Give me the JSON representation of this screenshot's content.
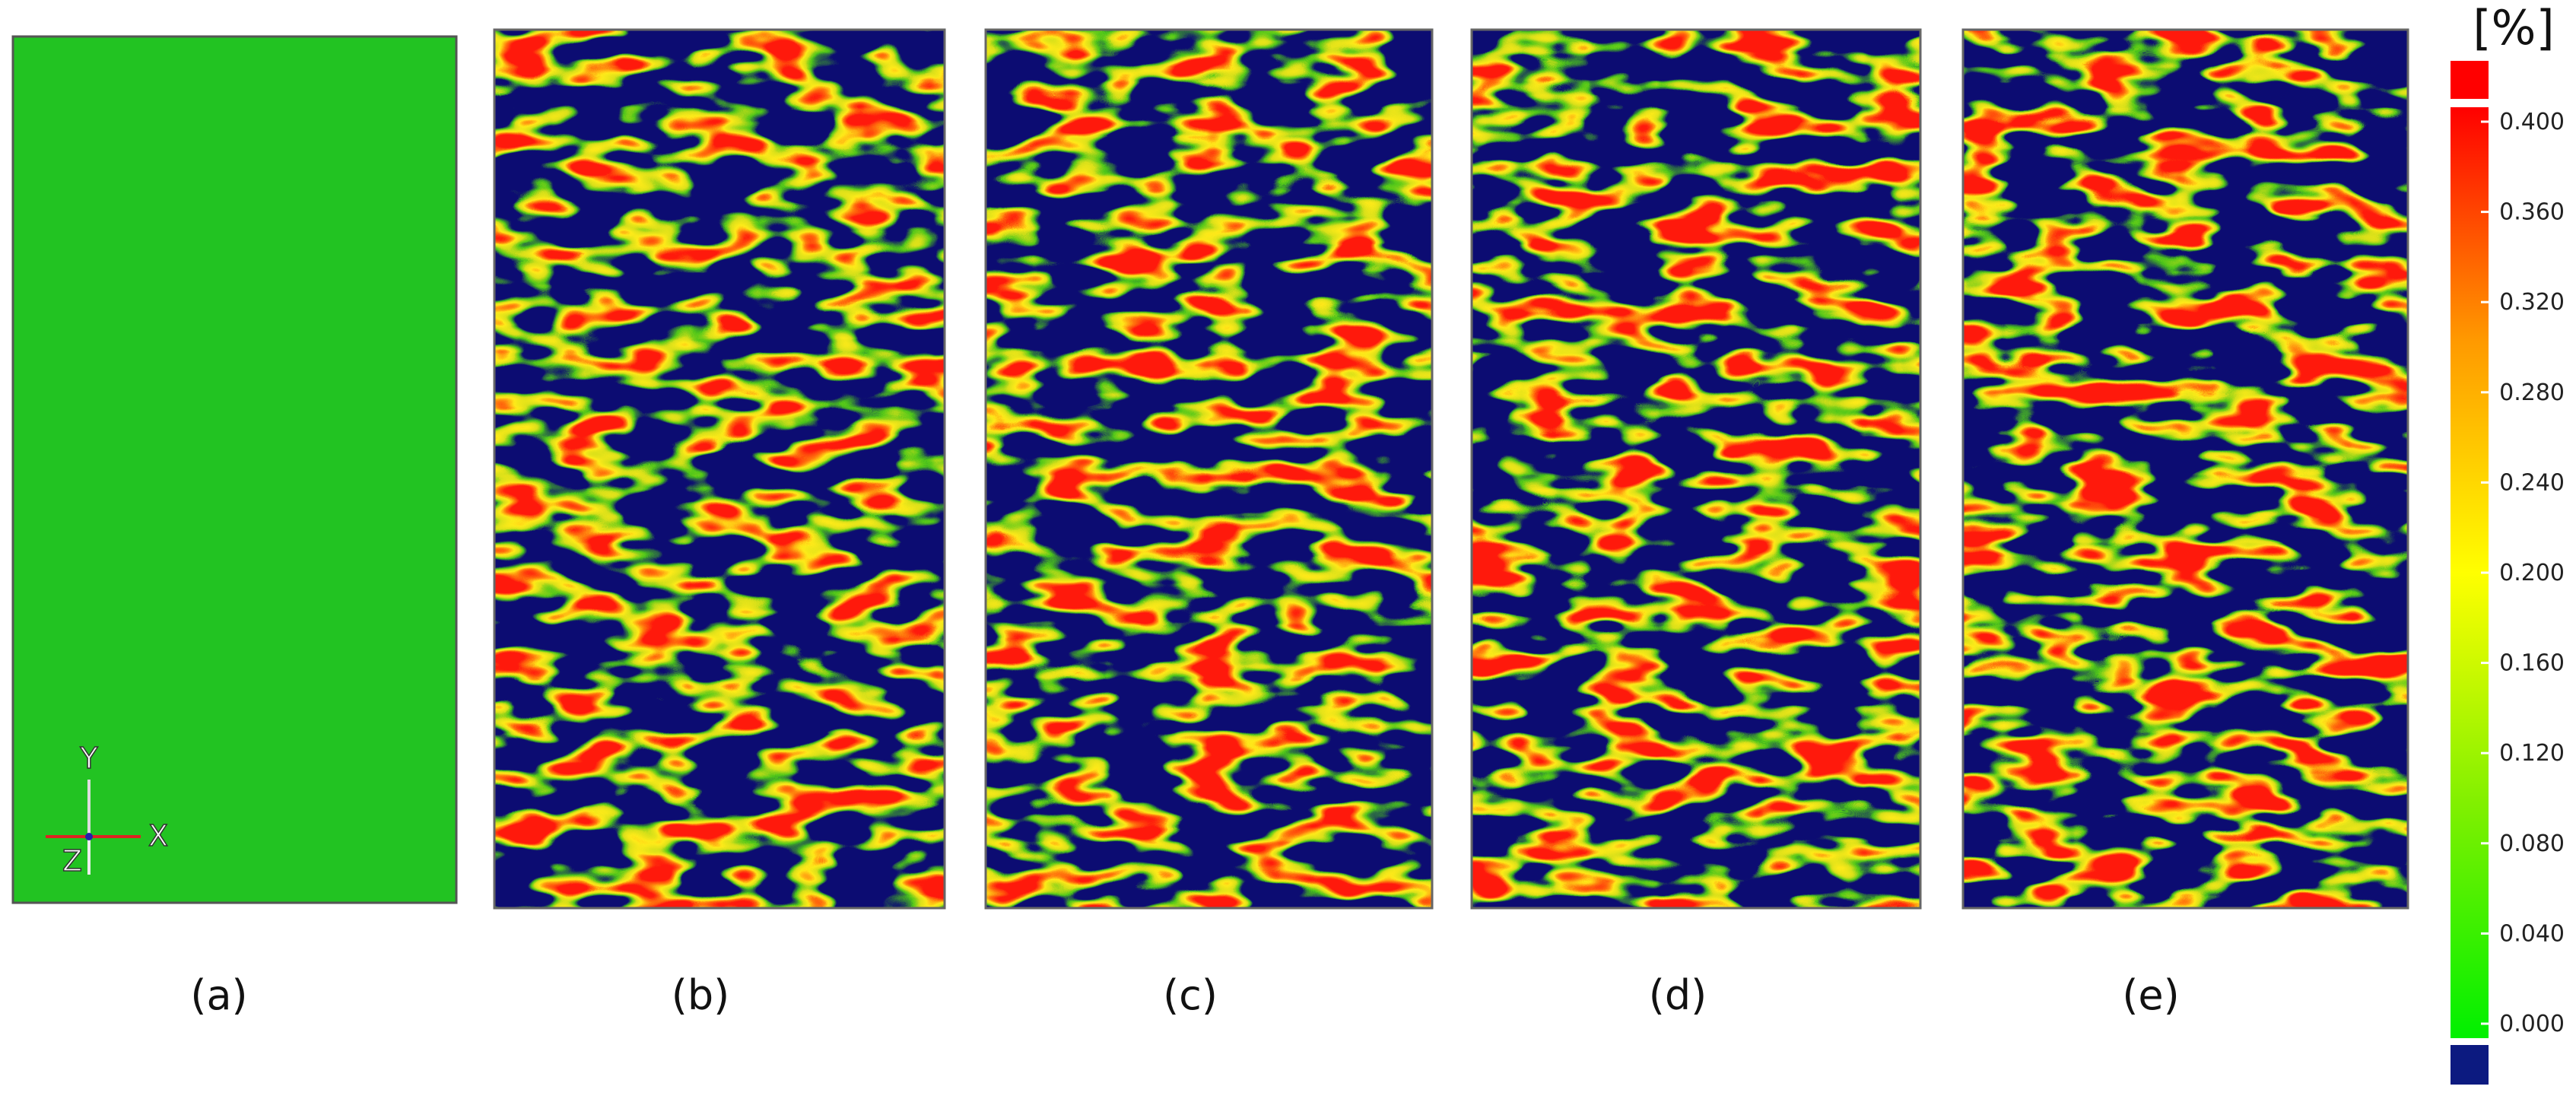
{
  "panels": [
    {
      "label": "(a)"
    },
    {
      "label": "(b)"
    },
    {
      "label": "(c)"
    },
    {
      "label": "(d)"
    },
    {
      "label": "(e)"
    }
  ],
  "axes_triad": {
    "x": "X",
    "y": "Y",
    "z": "Z"
  },
  "colorbar": {
    "unit": "[%]",
    "ticks": [
      {
        "value": 0,
        "label": "0.000"
      },
      {
        "value": 0.04,
        "label": "0.040"
      },
      {
        "value": 0.08,
        "label": "0.080"
      },
      {
        "value": 0.12,
        "label": "0.120"
      },
      {
        "value": 0.16,
        "label": "0.160"
      },
      {
        "value": 0.2,
        "label": "0.200"
      },
      {
        "value": 0.24,
        "label": "0.240"
      },
      {
        "value": 0.28,
        "label": "0.280"
      },
      {
        "value": 0.32,
        "label": "0.320"
      },
      {
        "value": 0.36,
        "label": "0.360"
      },
      {
        "value": 0.4,
        "label": "0.400"
      }
    ]
  }
}
